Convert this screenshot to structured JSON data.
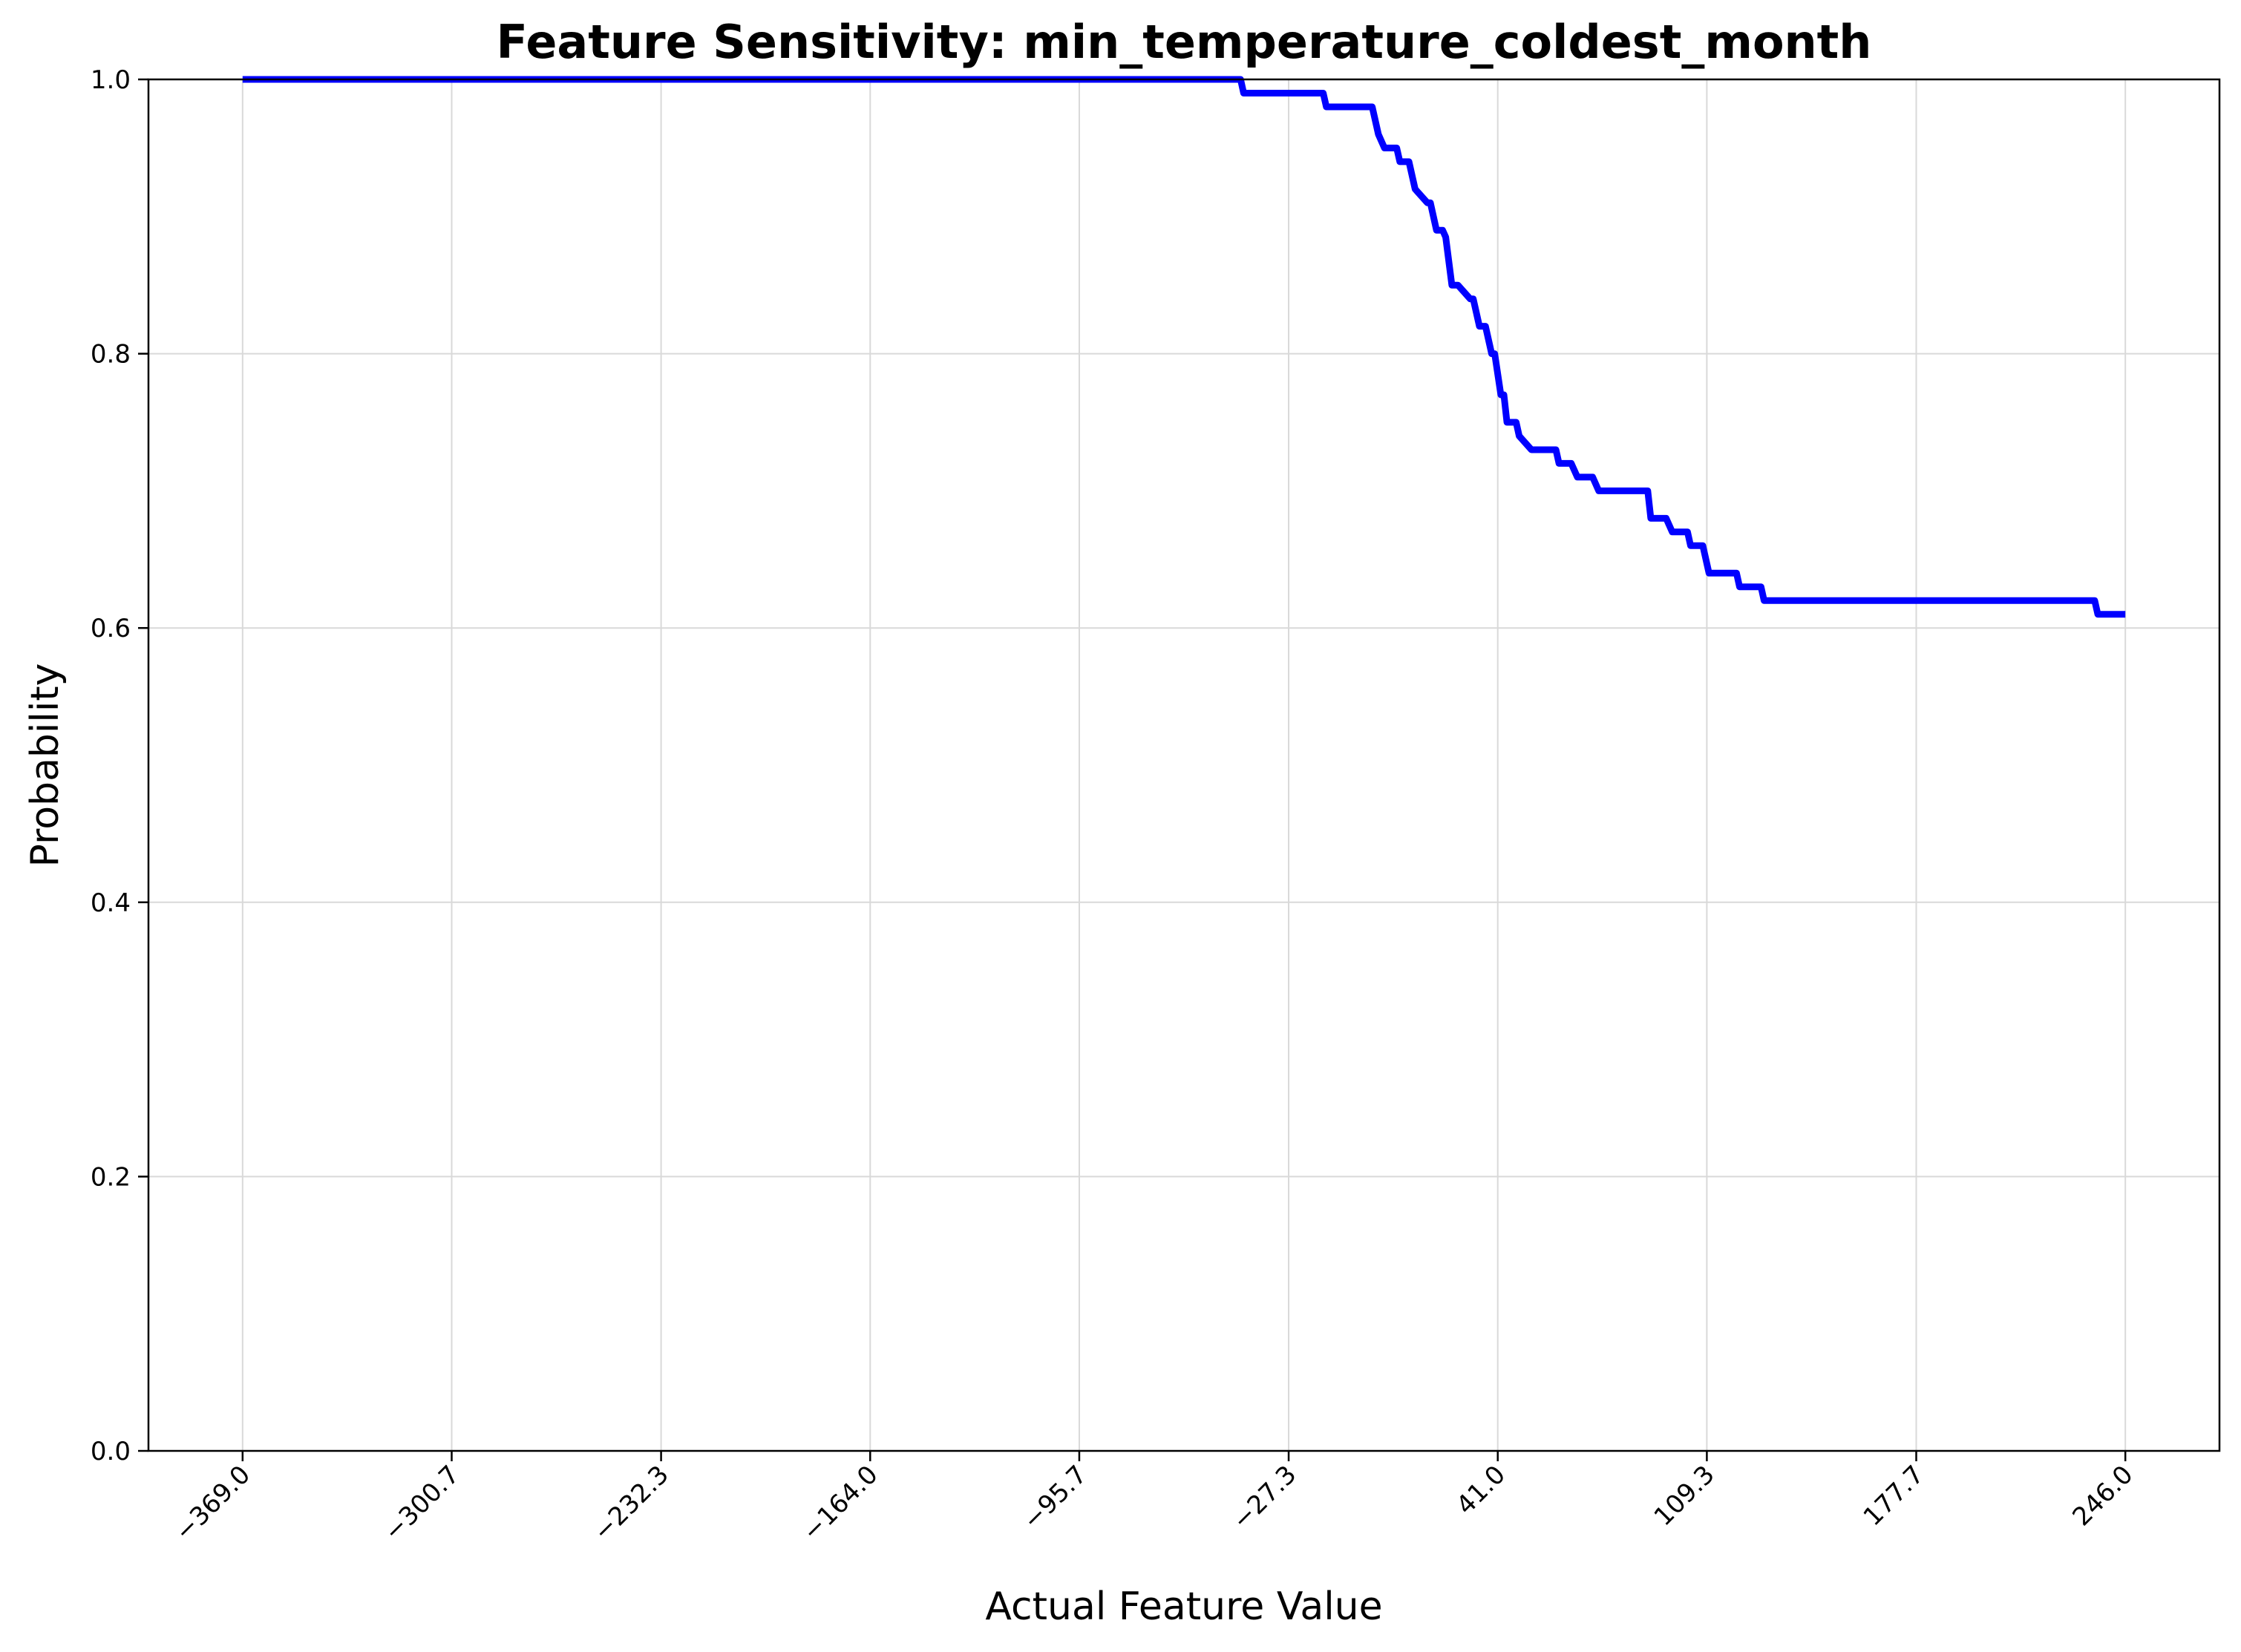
{
  "chart_data": {
    "type": "line",
    "title": "Feature Sensitivity: min_temperature_coldest_month",
    "xlabel": "Actual Feature Value",
    "ylabel": "Probability",
    "xlim": [
      -399.75,
      276.75
    ],
    "ylim": [
      0.0,
      1.0
    ],
    "grid": true,
    "line_color": "#0000ff",
    "x_ticks": [
      -369.0,
      -300.7,
      -232.3,
      -164.0,
      -95.7,
      -27.3,
      41.0,
      109.3,
      177.7,
      246.0
    ],
    "x_tick_labels": [
      "−369.0",
      "−300.7",
      "−232.3",
      "−164.0",
      "−95.7",
      "−27.3",
      "41.0",
      "109.3",
      "177.7",
      "246.0"
    ],
    "y_ticks": [
      0.0,
      0.2,
      0.4,
      0.6,
      0.8,
      1.0
    ],
    "y_tick_labels": [
      "0.0",
      "0.2",
      "0.4",
      "0.6",
      "0.8",
      "1.0"
    ],
    "series": [
      {
        "x": [
          -369.0,
          -43.0,
          -42.0,
          -16.0,
          -15.0,
          0.0,
          2.0,
          4.0,
          8.0,
          9.0,
          12.0,
          14.0,
          18.0,
          19.0,
          20.0,
          21.0,
          23.0,
          24.0,
          26.0,
          28.0,
          32.0,
          33.0,
          35.0,
          37.0,
          39.0,
          40.0,
          42.0,
          43.0,
          44.0,
          45.0,
          47.0,
          48.0,
          52.0,
          54.0,
          60.0,
          61.0,
          65.0,
          67.0,
          72.0,
          74.0,
          80.0,
          82.0,
          90.0,
          91.0,
          96.0,
          98.0,
          103.0,
          104.0,
          108.0,
          110.0,
          119.0,
          120.0,
          127.0,
          128.0,
          236.0,
          237.0,
          246.0
        ],
        "y": [
          1.0,
          1.0,
          0.99,
          0.99,
          0.98,
          0.98,
          0.96,
          0.95,
          0.95,
          0.94,
          0.94,
          0.92,
          0.91,
          0.91,
          0.9,
          0.89,
          0.89,
          0.885,
          0.85,
          0.85,
          0.84,
          0.84,
          0.82,
          0.82,
          0.8,
          0.8,
          0.77,
          0.77,
          0.75,
          0.75,
          0.75,
          0.74,
          0.73,
          0.73,
          0.73,
          0.72,
          0.72,
          0.71,
          0.71,
          0.7,
          0.7,
          0.7,
          0.7,
          0.68,
          0.68,
          0.67,
          0.67,
          0.66,
          0.66,
          0.64,
          0.64,
          0.63,
          0.63,
          0.62,
          0.62,
          0.61,
          0.61
        ]
      }
    ]
  }
}
